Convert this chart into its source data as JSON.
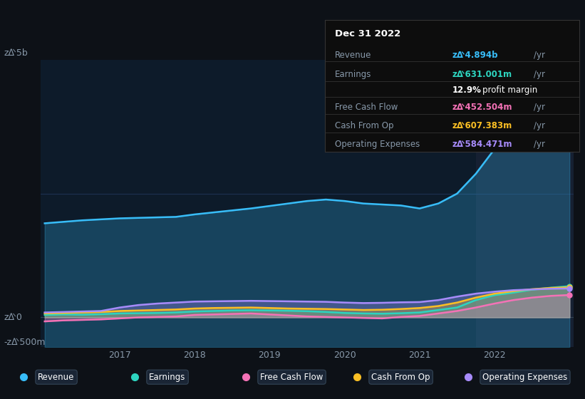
{
  "bg_color": "#0d1117",
  "plot_bg_color": "#0d1b2a",
  "highlight_bg": "#162032",
  "grid_color": "#1e3050",
  "title_text": "Dec 31 2022",
  "tooltip": {
    "Revenue": {
      "value": "zᐬ4.894b",
      "color": "#38bdf8"
    },
    "Earnings": {
      "value": "zᐬ631.001m",
      "color": "#2dd4bf"
    },
    "profit_margin": "12.9%",
    "Free Cash Flow": {
      "value": "zᐬ452.504m",
      "color": "#f472b6"
    },
    "Cash From Op": {
      "value": "zᐬ607.383m",
      "color": "#fbbf24"
    },
    "Operating Expenses": {
      "value": "zᐬ584.471m",
      "color": "#a78bfa"
    }
  },
  "ylabel_top": "zᐬ5b",
  "ylabel_zero": "zᐬ0",
  "ylabel_neg": "-zᐬ500m",
  "x_ticks": [
    2017,
    2018,
    2019,
    2020,
    2021,
    2022
  ],
  "ylim": [
    -600000000,
    5200000000
  ],
  "line_colors": {
    "Revenue": "#38bdf8",
    "Earnings": "#2dd4bf",
    "Free Cash Flow": "#f472b6",
    "Cash From Op": "#fbbf24",
    "Operating Expenses": "#a78bfa"
  },
  "x_data": [
    2016.0,
    2016.25,
    2016.5,
    2016.75,
    2017.0,
    2017.25,
    2017.5,
    2017.75,
    2018.0,
    2018.25,
    2018.5,
    2018.75,
    2019.0,
    2019.25,
    2019.5,
    2019.75,
    2020.0,
    2020.25,
    2020.5,
    2020.75,
    2021.0,
    2021.25,
    2021.5,
    2021.75,
    2022.0,
    2022.25,
    2022.5,
    2022.75,
    2023.0
  ],
  "Revenue": [
    1900000000,
    1930000000,
    1960000000,
    1980000000,
    2000000000,
    2010000000,
    2020000000,
    2030000000,
    2080000000,
    2120000000,
    2160000000,
    2200000000,
    2250000000,
    2300000000,
    2350000000,
    2380000000,
    2350000000,
    2300000000,
    2280000000,
    2260000000,
    2200000000,
    2300000000,
    2500000000,
    2900000000,
    3400000000,
    3900000000,
    4400000000,
    4750000000,
    4894000000
  ],
  "Earnings": [
    50000000,
    60000000,
    55000000,
    65000000,
    80000000,
    85000000,
    90000000,
    100000000,
    120000000,
    130000000,
    140000000,
    145000000,
    140000000,
    135000000,
    125000000,
    110000000,
    90000000,
    80000000,
    75000000,
    85000000,
    100000000,
    150000000,
    200000000,
    350000000,
    450000000,
    500000000,
    560000000,
    600000000,
    631000000
  ],
  "Free Cash Flow": [
    -80000000,
    -60000000,
    -50000000,
    -40000000,
    -20000000,
    0,
    10000000,
    20000000,
    50000000,
    60000000,
    70000000,
    80000000,
    60000000,
    40000000,
    20000000,
    10000000,
    0,
    -10000000,
    -20000000,
    10000000,
    30000000,
    80000000,
    130000000,
    200000000,
    280000000,
    350000000,
    400000000,
    435000000,
    452504000
  ],
  "Cash From Op": [
    80000000,
    90000000,
    100000000,
    110000000,
    130000000,
    140000000,
    150000000,
    160000000,
    180000000,
    190000000,
    195000000,
    200000000,
    190000000,
    180000000,
    175000000,
    170000000,
    160000000,
    150000000,
    155000000,
    170000000,
    190000000,
    230000000,
    300000000,
    400000000,
    480000000,
    530000000,
    570000000,
    595000000,
    607383000
  ],
  "Operating Expenses": [
    100000000,
    110000000,
    120000000,
    130000000,
    200000000,
    250000000,
    280000000,
    300000000,
    320000000,
    325000000,
    330000000,
    335000000,
    330000000,
    325000000,
    320000000,
    315000000,
    300000000,
    290000000,
    295000000,
    305000000,
    310000000,
    350000000,
    420000000,
    480000000,
    520000000,
    550000000,
    565000000,
    578000000,
    584471000
  ]
}
